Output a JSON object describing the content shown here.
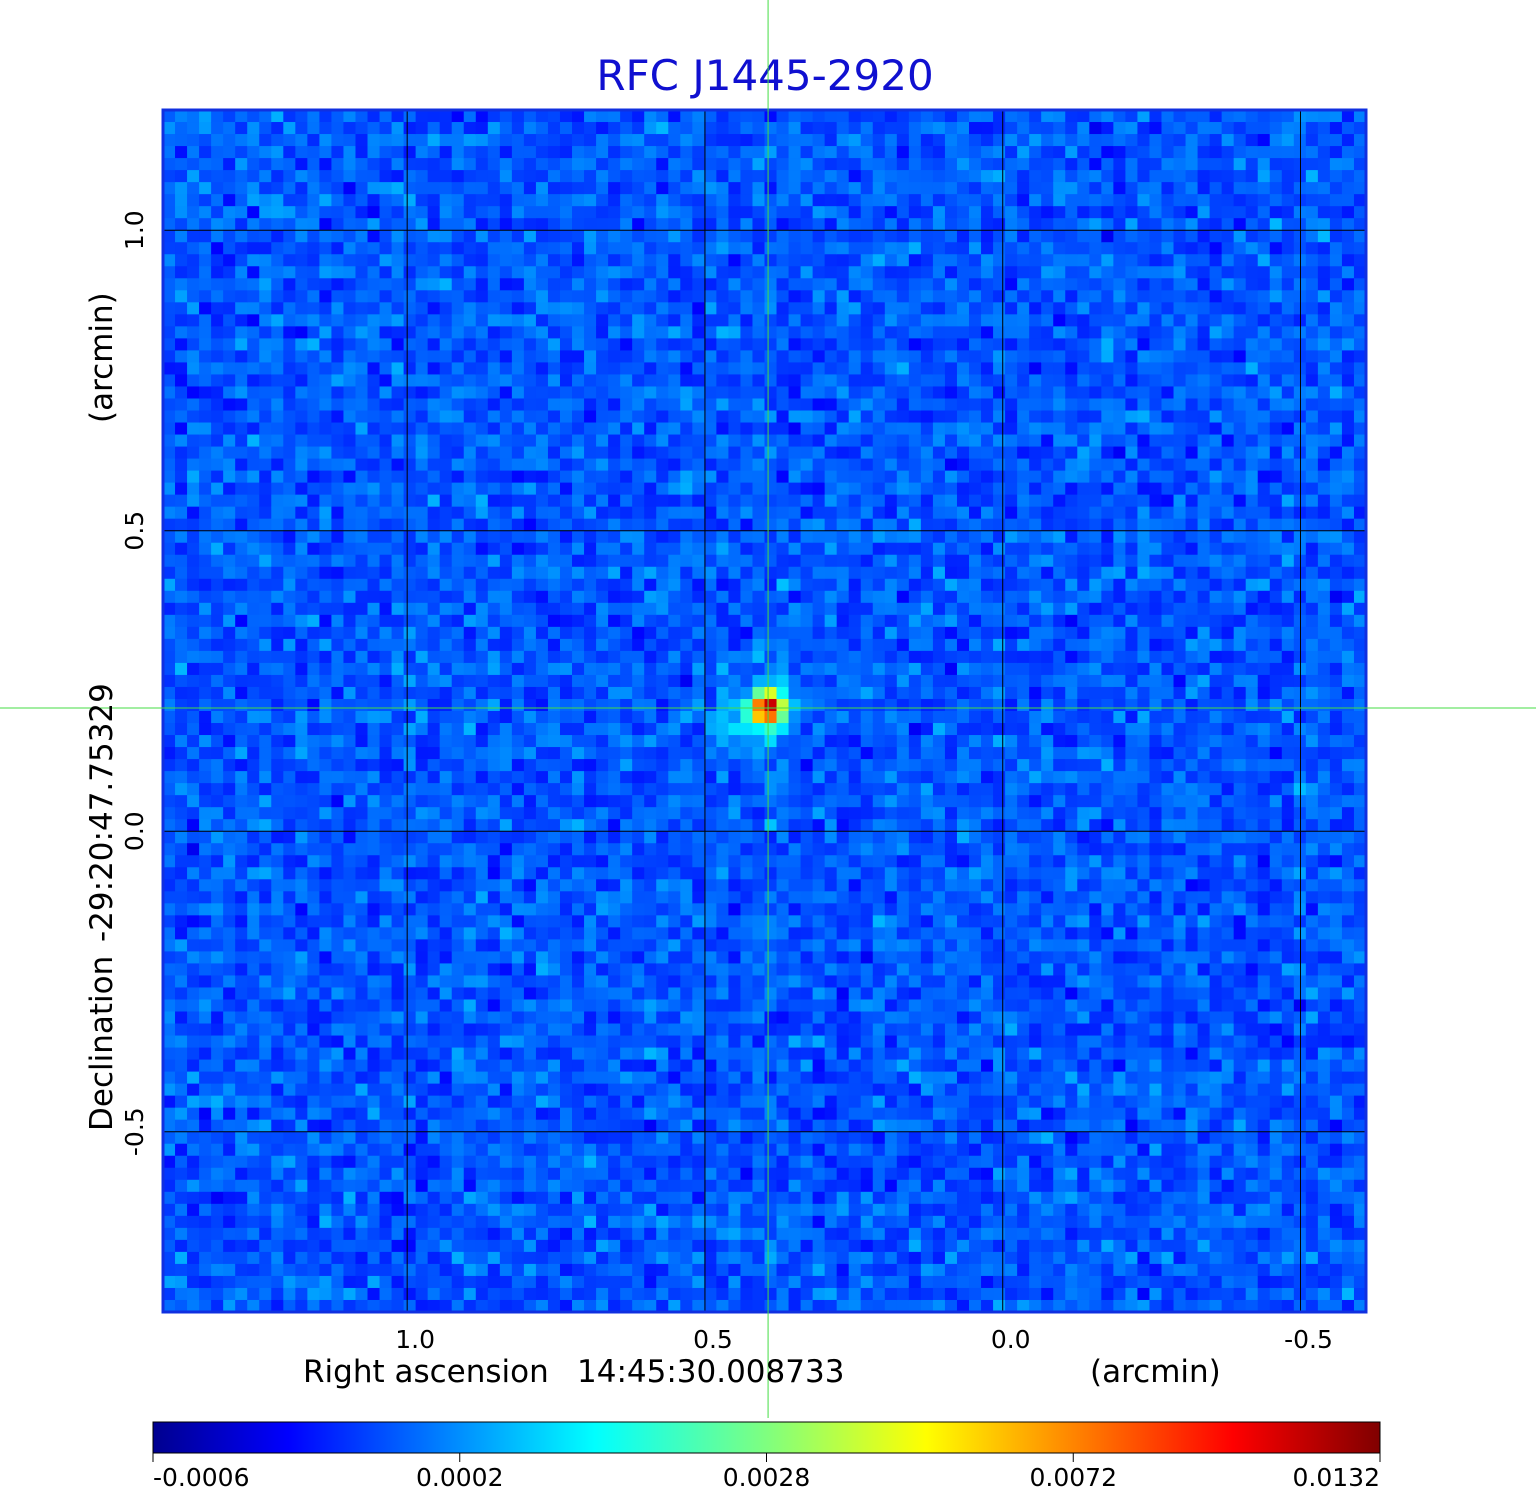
{
  "chart_data": {
    "type": "heatmap",
    "title": "RFC J1445-2920",
    "xlabel": {
      "name": "Right ascension",
      "center": "14:45:30.008733",
      "unit": "(arcmin)"
    },
    "ylabel": {
      "name": "Declination",
      "center": "-29:20:47.75329",
      "unit": "(arcmin)"
    },
    "xlim": [
      1.41,
      -0.61
    ],
    "ylim": [
      -0.8,
      1.2
    ],
    "xticks": [
      1.0,
      0.5,
      0.0,
      -0.5
    ],
    "xtick_labels": [
      "1.0",
      "0.5",
      "0.0",
      "-0.5"
    ],
    "yticks": [
      1.0,
      0.5,
      0.0,
      -0.5
    ],
    "ytick_labels": [
      "1.0",
      "0.5",
      "0.0",
      "-0.5"
    ],
    "grid": true,
    "crosshair": {
      "x": 0.394,
      "y": 0.205,
      "color": "#44dd44"
    },
    "source_peak": {
      "x": 0.394,
      "y": 0.205,
      "value": 0.0132
    },
    "colormap": "jet",
    "colorbar": {
      "position": "bottom",
      "ticks": [
        -0.0006,
        0.0002,
        0.0028,
        0.0072,
        0.0132
      ],
      "tick_labels": [
        "-0.0006",
        "0.0002",
        "0.0028",
        "0.0072",
        "0.0132"
      ]
    },
    "colors": {
      "title": "#1010d0",
      "frame": "#1030e0",
      "grid": "#000000",
      "crosshair": "#44dd44"
    }
  }
}
